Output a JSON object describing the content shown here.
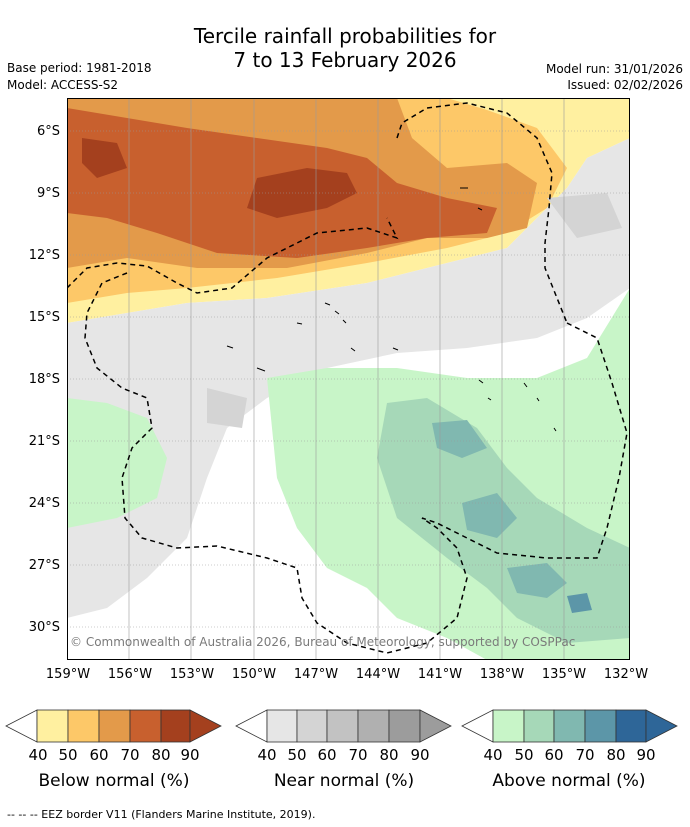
{
  "header": {
    "title_line1": "Tercile rainfall probabilities for",
    "title_line2": "7 to 13 February 2026",
    "base_period": "Base period: 1981-2018",
    "model": "Model: ACCESS-S2",
    "model_run": "Model run: 31/01/2026",
    "issued": "Issued: 02/02/2026"
  },
  "map": {
    "copyright": "© Commonwealth of Australia 2026, Bureau of Meteorology, supported by COSPPac",
    "lat_labels": [
      "6°S",
      "9°S",
      "12°S",
      "15°S",
      "18°S",
      "21°S",
      "24°S",
      "27°S",
      "30°S"
    ],
    "lon_labels": [
      "159°W",
      "156°W",
      "153°W",
      "150°W",
      "147°W",
      "144°W",
      "141°W",
      "138°W",
      "135°W",
      "132°W"
    ]
  },
  "legend": {
    "ticks": [
      "40",
      "50",
      "60",
      "70",
      "80",
      "90"
    ],
    "below": {
      "title": "Below normal (%)",
      "colors": [
        "#fff0a0",
        "#fdc868",
        "#e39a4a",
        "#c8602e",
        "#a4401e"
      ]
    },
    "near": {
      "title": "Near normal (%)",
      "colors": [
        "#e6e6e6",
        "#d4d4d4",
        "#c2c2c2",
        "#b0b0b0",
        "#9c9c9c"
      ]
    },
    "above": {
      "title": "Above normal (%)",
      "colors": [
        "#c8f5c8",
        "#a6d8b8",
        "#80b8b0",
        "#5c96a8",
        "#2e6698"
      ]
    }
  },
  "footnote": "--  --  -- EEZ border V11 (Flanders Marine Institute, 2019)."
}
